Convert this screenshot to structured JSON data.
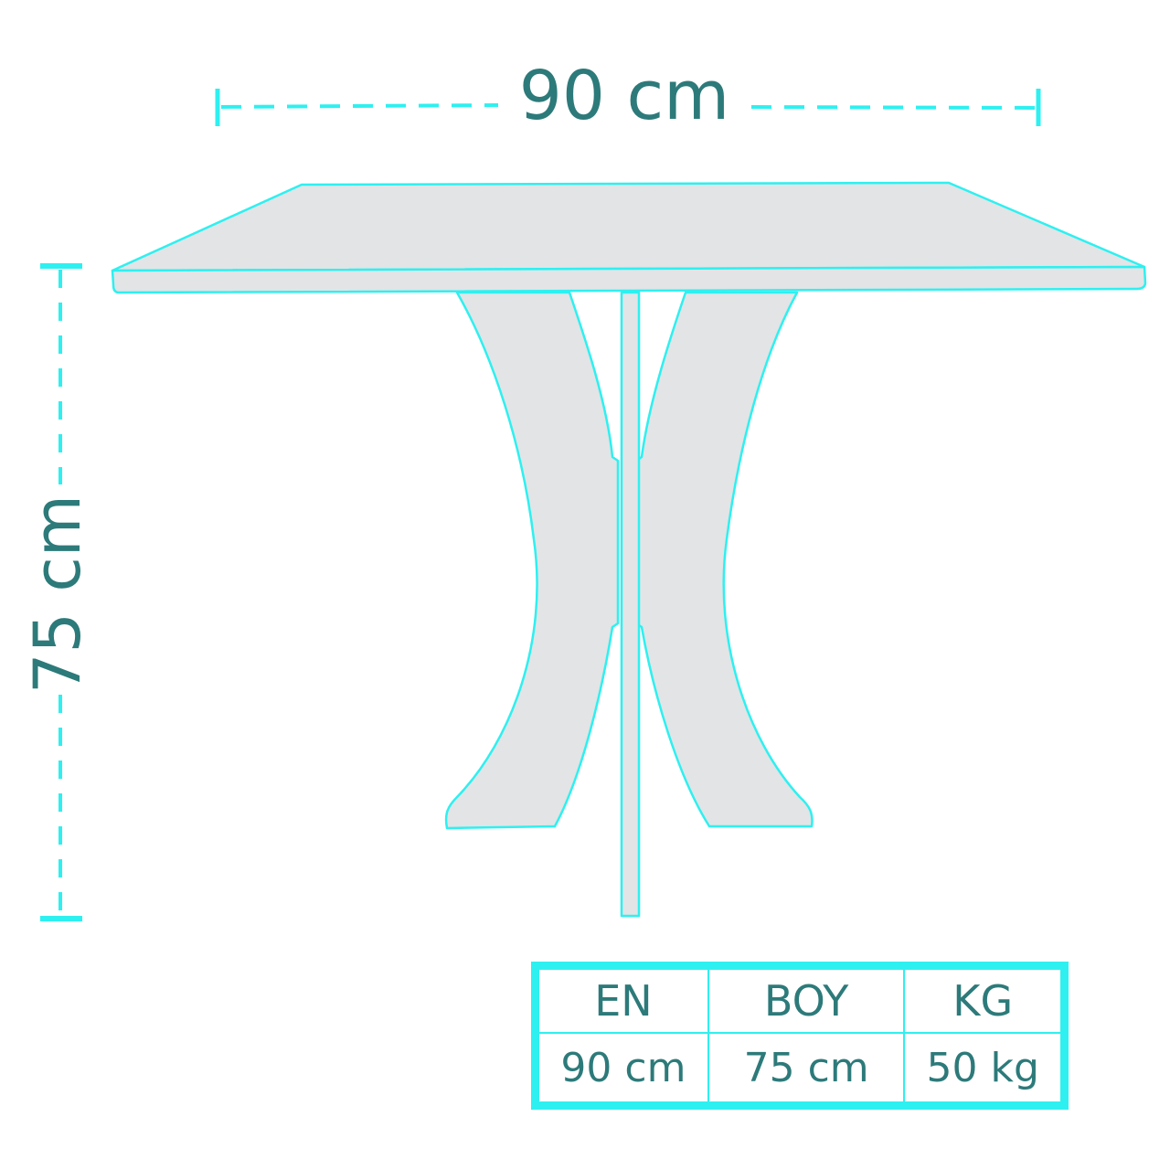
{
  "dimensions": {
    "width_label": "90 cm",
    "height_label": "75 cm"
  },
  "spec_table": {
    "headers": [
      "EN",
      "BOY",
      "KG"
    ],
    "values": [
      "90 cm",
      "75 cm",
      "50 kg"
    ]
  },
  "colors": {
    "outline": "#2ef0f0",
    "text": "#2d7a7a",
    "fill": "#e2e4e6"
  }
}
